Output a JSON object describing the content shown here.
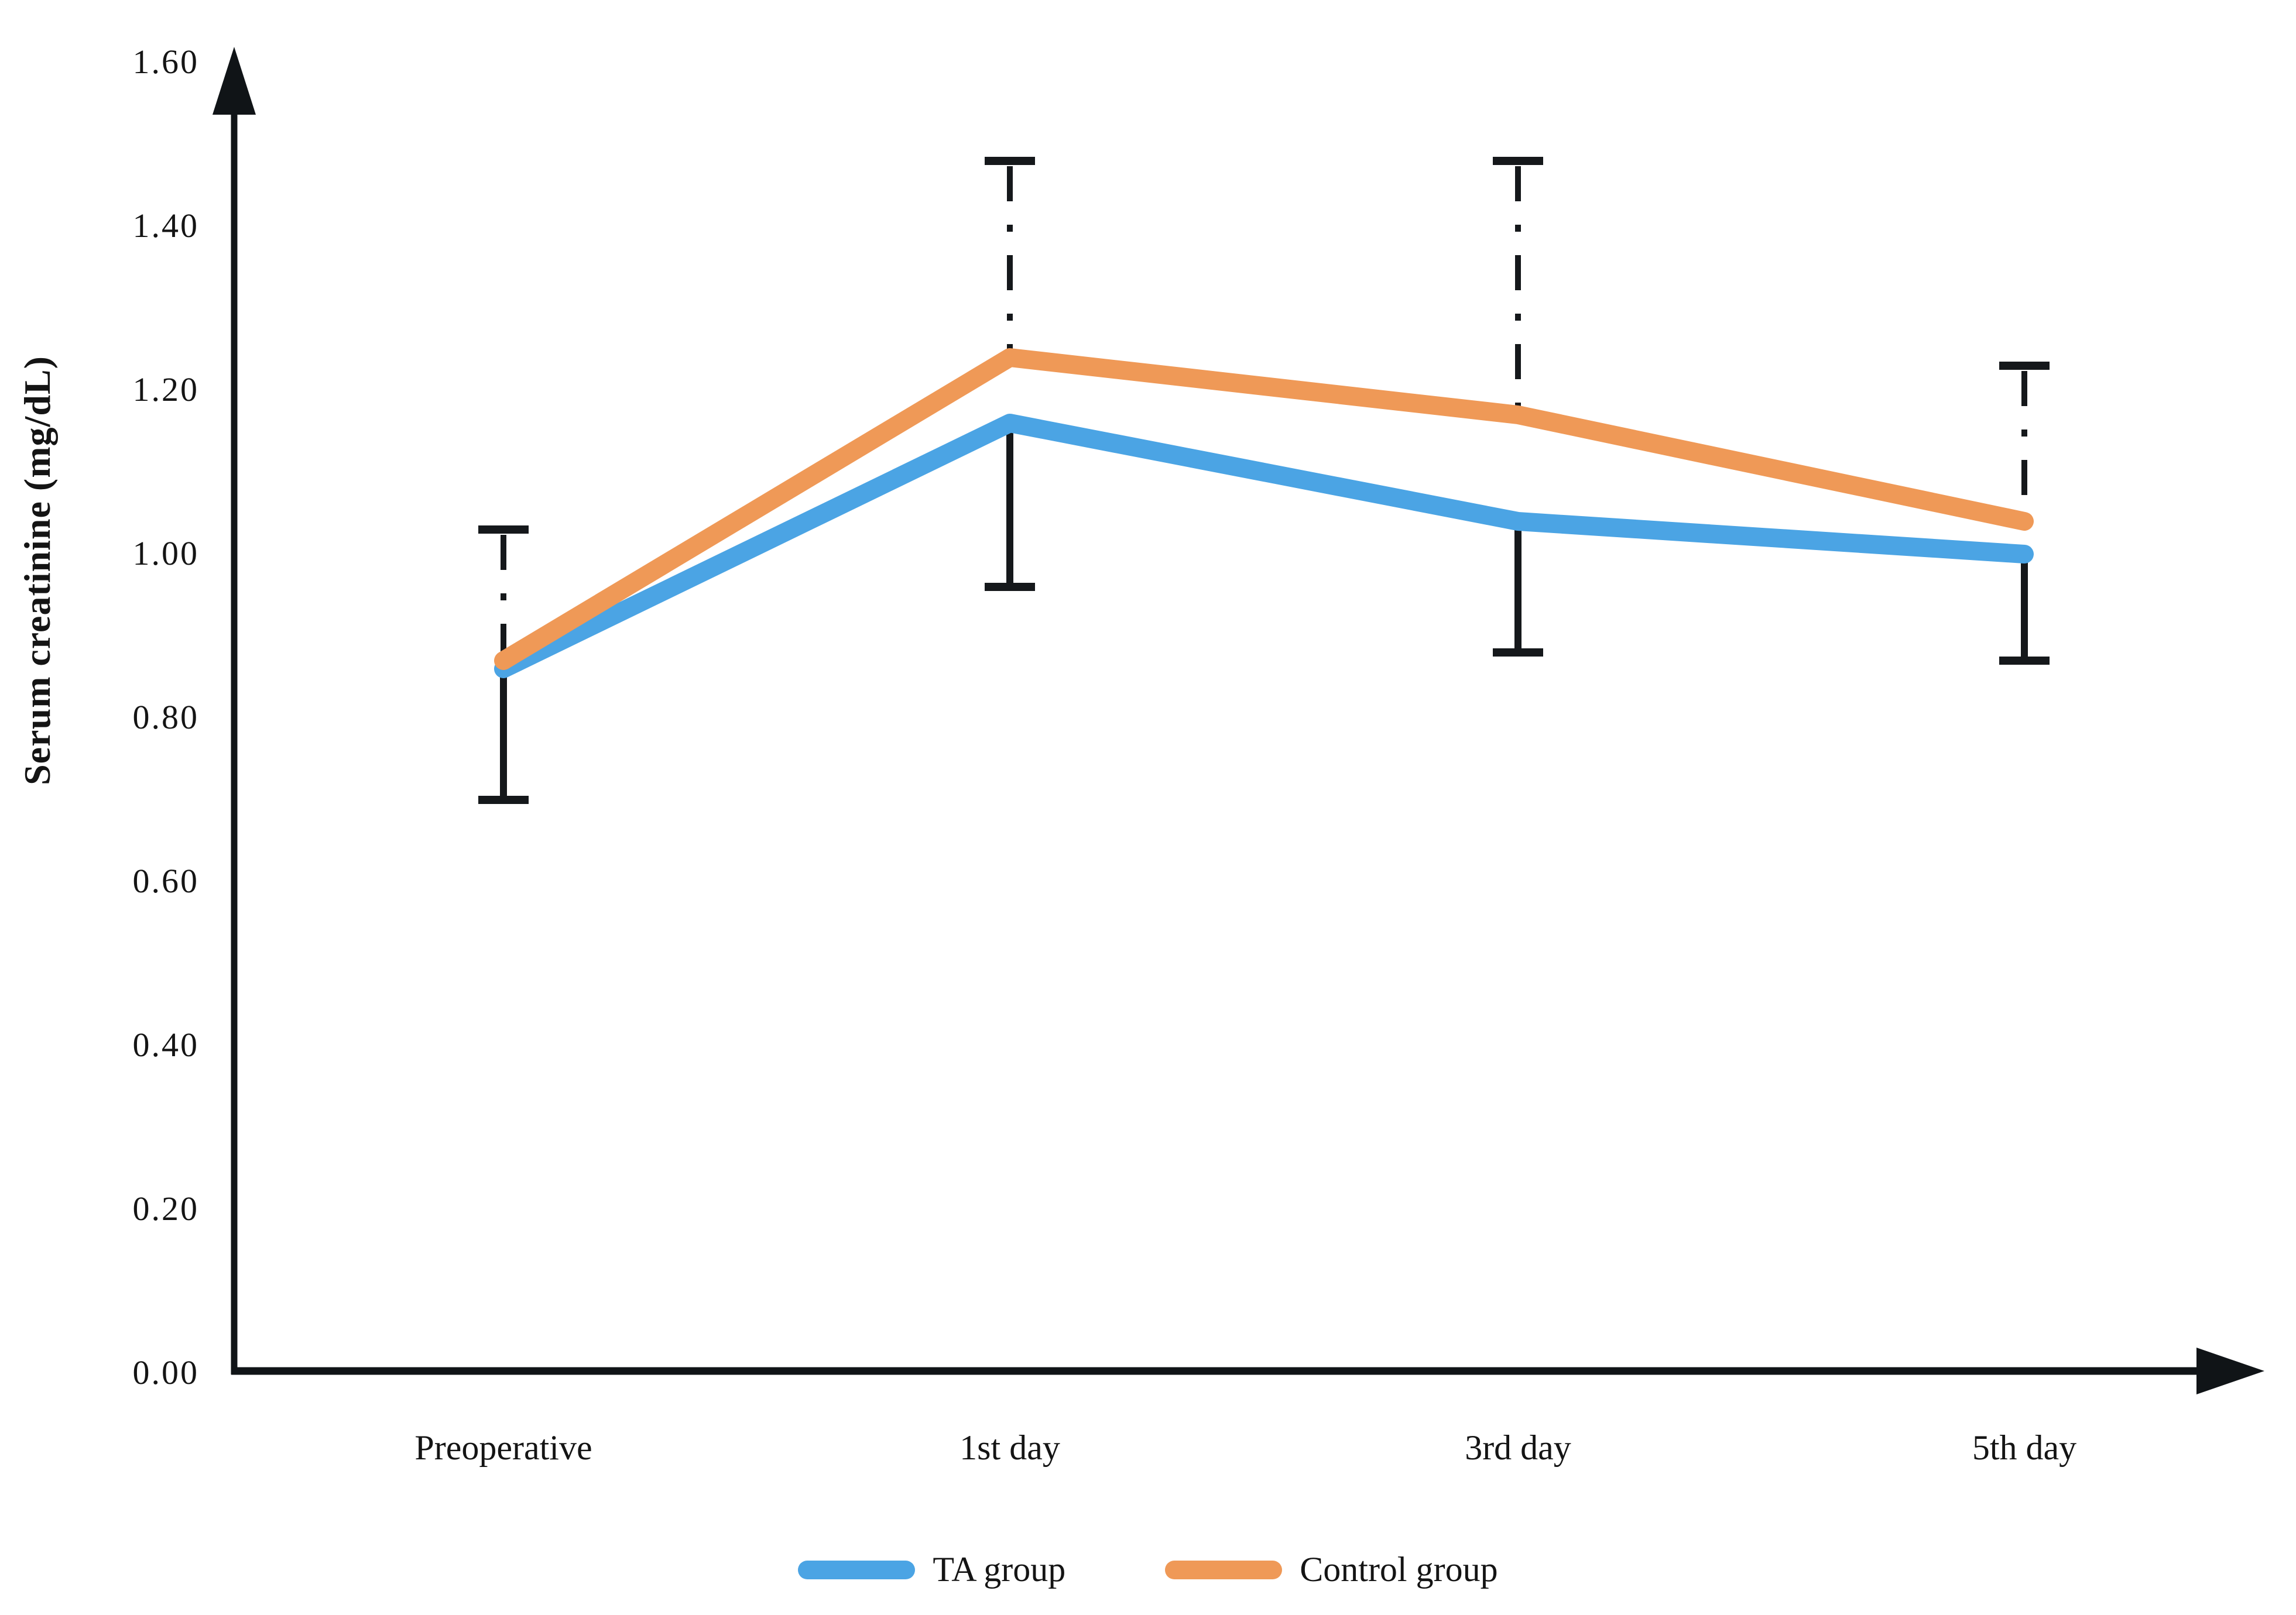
{
  "figure": {
    "background": "#ffffff",
    "text_color": "#141414",
    "axis_color": "#101417",
    "error_bar_color": "#15181b"
  },
  "chart_data": {
    "type": "line",
    "title": "",
    "xlabel": "",
    "ylabel": "Serum creatinine (mg/dL)",
    "categories": [
      "Preoperative",
      "1st day",
      "3rd day",
      "5th day"
    ],
    "series": [
      {
        "name": "TA group",
        "color": "#4ba4e4",
        "values": [
          0.86,
          1.16,
          1.04,
          1.0
        ]
      },
      {
        "name": "Control group",
        "color": "#ef9957",
        "values": [
          0.87,
          1.24,
          1.17,
          1.04
        ]
      }
    ],
    "error_bars": [
      {
        "category": "Preoperative",
        "upper": 1.03,
        "lower": 0.7
      },
      {
        "category": "1st day",
        "upper": 1.48,
        "lower": 0.96
      },
      {
        "category": "3rd day",
        "upper": 1.48,
        "lower": 0.88
      },
      {
        "category": "5th day",
        "upper": 1.23,
        "lower": 0.87
      }
    ],
    "error_bar_style": {
      "upper_segment": "dash-dot",
      "lower_segment": "solid"
    },
    "ylim": [
      0.0,
      1.6
    ],
    "ytick_step": 0.2,
    "yticks": [
      "0.00",
      "0.20",
      "0.40",
      "0.60",
      "0.80",
      "1.00",
      "1.20",
      "1.40",
      "1.60"
    ],
    "grid": false,
    "legend_position": "bottom",
    "axis_arrows": true
  },
  "legend": {
    "items": [
      {
        "label": "TA group",
        "color": "#4ba4e4"
      },
      {
        "label": "Control group",
        "color": "#ef9957"
      }
    ]
  }
}
